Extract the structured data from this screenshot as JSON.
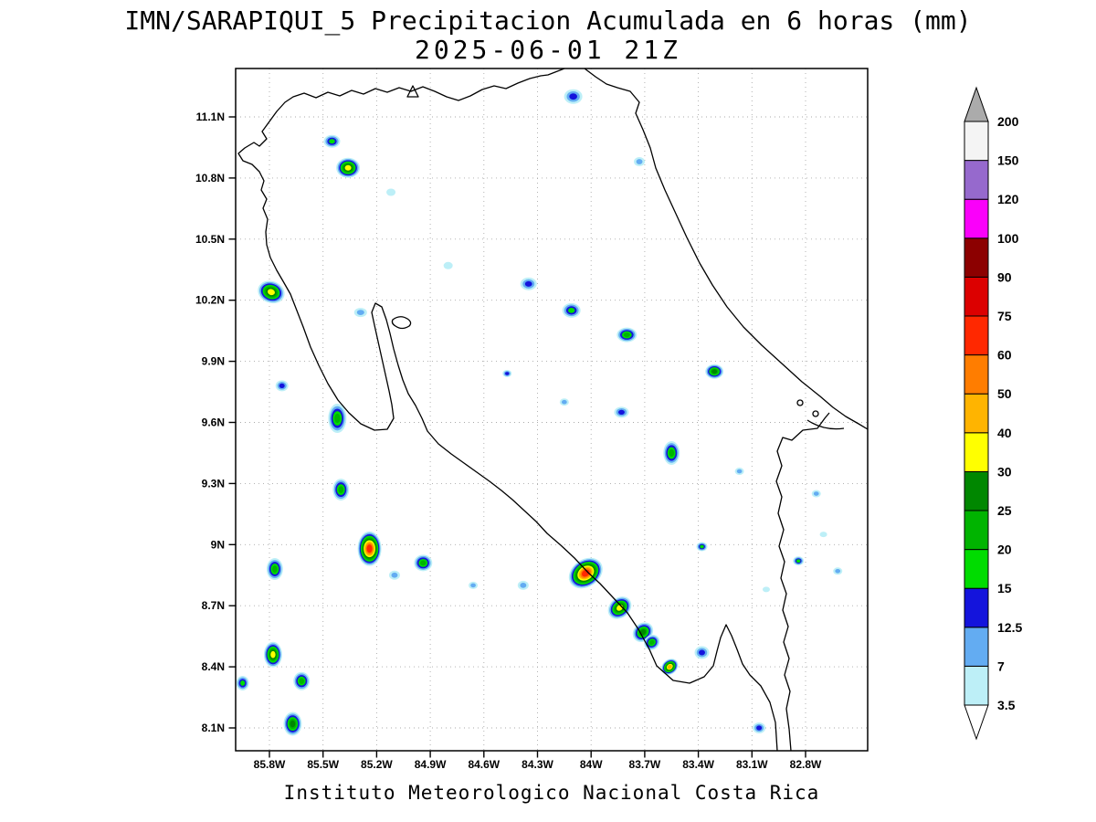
{
  "header": {
    "title": "IMN/SARAPIQUI_5 Precipitacion Acumulada en 6 horas (mm)",
    "subtitle": "2025-06-01 21Z"
  },
  "footer": {
    "caption": "Instituto Meteorologico Nacional Costa Rica"
  },
  "chart_data": {
    "type": "heatmap",
    "title": "IMN/SARAPIQUI_5 Precipitacion Acumulada en 6 horas (mm)",
    "subtitle": "2025-06-01 21Z",
    "units": "mm",
    "region": "Costa Rica",
    "x_axis": {
      "ticks": [
        {
          "value": 85.8,
          "label": "85.8W"
        },
        {
          "value": 85.5,
          "label": "85.5W"
        },
        {
          "value": 85.2,
          "label": "85.2W"
        },
        {
          "value": 84.9,
          "label": "84.9W"
        },
        {
          "value": 84.6,
          "label": "84.6W"
        },
        {
          "value": 84.3,
          "label": "84.3W"
        },
        {
          "value": 84.0,
          "label": "84W"
        },
        {
          "value": 83.7,
          "label": "83.7W"
        },
        {
          "value": 83.4,
          "label": "83.4W"
        },
        {
          "value": 83.1,
          "label": "83.1W"
        },
        {
          "value": 82.8,
          "label": "82.8W"
        }
      ]
    },
    "y_axis": {
      "ticks": [
        {
          "value": 11.1,
          "label": "11.1N"
        },
        {
          "value": 10.8,
          "label": "10.8N"
        },
        {
          "value": 10.5,
          "label": "10.5N"
        },
        {
          "value": 10.2,
          "label": "10.2N"
        },
        {
          "value": 9.9,
          "label": "9.9N"
        },
        {
          "value": 9.6,
          "label": "9.6N"
        },
        {
          "value": 9.3,
          "label": "9.3N"
        },
        {
          "value": 9.0,
          "label": "9N"
        },
        {
          "value": 8.7,
          "label": "8.7N"
        },
        {
          "value": 8.4,
          "label": "8.4N"
        },
        {
          "value": 8.1,
          "label": "8.1N"
        }
      ]
    },
    "colorbar": {
      "levels": [
        3.5,
        7,
        12.5,
        15,
        20,
        25,
        30,
        40,
        50,
        60,
        75,
        90,
        100,
        120,
        150,
        200
      ],
      "labels": [
        "3.5",
        "7",
        "12.5",
        "15",
        "20",
        "25",
        "30",
        "40",
        "50",
        "60",
        "75",
        "90",
        "100",
        "120",
        "150",
        "200"
      ],
      "colors": {
        "3.5": "#BDEFF7",
        "7": "#63ACF2",
        "12.5": "#1414DC",
        "15": "#00DC00",
        "20": "#00B400",
        "25": "#008700",
        "30": "#FFFF00",
        "40": "#FFB400",
        "50": "#FF7D00",
        "60": "#FF2800",
        "75": "#DC0000",
        "90": "#8C0000",
        "100": "#FA00FA",
        "120": "#9669CD",
        "150": "#F4F4F4"
      },
      "above_color": "#ABABAB",
      "below_color": "#FFFFFF"
    },
    "cells": [
      {
        "lon": 84.1,
        "lat": 11.2,
        "rx": 10,
        "ry": 8,
        "rot": 0,
        "max": 12.5
      },
      {
        "lon": 85.45,
        "lat": 10.98,
        "rx": 9,
        "ry": 7,
        "rot": 0,
        "max": 15
      },
      {
        "lon": 85.36,
        "lat": 10.85,
        "rx": 13,
        "ry": 11,
        "rot": 0,
        "max": 30
      },
      {
        "lon": 85.12,
        "lat": 10.73,
        "rx": 5,
        "ry": 4,
        "rot": 0,
        "max": 3.5
      },
      {
        "lon": 83.73,
        "lat": 10.88,
        "rx": 6,
        "ry": 5,
        "rot": 0,
        "max": 7
      },
      {
        "lon": 84.8,
        "lat": 10.37,
        "rx": 5,
        "ry": 4,
        "rot": 0,
        "max": 3.5
      },
      {
        "lon": 85.79,
        "lat": 10.24,
        "rx": 15,
        "ry": 12,
        "rot": 20,
        "max": 30
      },
      {
        "lon": 84.35,
        "lat": 10.28,
        "rx": 9,
        "ry": 7,
        "rot": 0,
        "max": 12.5
      },
      {
        "lon": 84.11,
        "lat": 10.15,
        "rx": 10,
        "ry": 8,
        "rot": 0,
        "max": 15
      },
      {
        "lon": 83.8,
        "lat": 10.03,
        "rx": 11,
        "ry": 8,
        "rot": 0,
        "max": 20
      },
      {
        "lon": 85.29,
        "lat": 10.14,
        "rx": 7,
        "ry": 5,
        "rot": 0,
        "max": 7
      },
      {
        "lon": 84.47,
        "lat": 9.84,
        "rx": 5,
        "ry": 4,
        "rot": 0,
        "max": 12.5
      },
      {
        "lon": 83.31,
        "lat": 9.85,
        "rx": 10,
        "ry": 8,
        "rot": 0,
        "max": 25
      },
      {
        "lon": 85.73,
        "lat": 9.78,
        "rx": 7,
        "ry": 6,
        "rot": 0,
        "max": 12.5
      },
      {
        "lon": 85.42,
        "lat": 9.62,
        "rx": 10,
        "ry": 16,
        "rot": 0,
        "max": 20
      },
      {
        "lon": 84.15,
        "lat": 9.7,
        "rx": 5,
        "ry": 4,
        "rot": 0,
        "max": 7
      },
      {
        "lon": 83.83,
        "lat": 9.65,
        "rx": 8,
        "ry": 6,
        "rot": 0,
        "max": 12.5
      },
      {
        "lon": 83.55,
        "lat": 9.45,
        "rx": 9,
        "ry": 13,
        "rot": 0,
        "max": 20
      },
      {
        "lon": 83.17,
        "lat": 9.36,
        "rx": 5,
        "ry": 4,
        "rot": 0,
        "max": 7
      },
      {
        "lon": 85.4,
        "lat": 9.27,
        "rx": 9,
        "ry": 12,
        "rot": 0,
        "max": 20
      },
      {
        "lon": 82.74,
        "lat": 9.25,
        "rx": 5,
        "ry": 4,
        "rot": 0,
        "max": 7
      },
      {
        "lon": 85.24,
        "lat": 8.98,
        "rx": 13,
        "ry": 19,
        "rot": 0,
        "max": 60
      },
      {
        "lon": 85.77,
        "lat": 8.88,
        "rx": 9,
        "ry": 12,
        "rot": 0,
        "max": 20
      },
      {
        "lon": 84.94,
        "lat": 8.91,
        "rx": 10,
        "ry": 9,
        "rot": 0,
        "max": 20
      },
      {
        "lon": 85.1,
        "lat": 8.85,
        "rx": 6,
        "ry": 5,
        "rot": 0,
        "max": 7
      },
      {
        "lon": 84.66,
        "lat": 8.8,
        "rx": 5,
        "ry": 4,
        "rot": 0,
        "max": 7
      },
      {
        "lon": 84.38,
        "lat": 8.8,
        "rx": 6,
        "ry": 5,
        "rot": 0,
        "max": 7
      },
      {
        "lon": 84.03,
        "lat": 8.86,
        "rx": 20,
        "ry": 15,
        "rot": -35,
        "max": 60
      },
      {
        "lon": 83.84,
        "lat": 8.69,
        "rx": 14,
        "ry": 11,
        "rot": -40,
        "max": 30
      },
      {
        "lon": 83.71,
        "lat": 8.57,
        "rx": 12,
        "ry": 10,
        "rot": -40,
        "max": 25
      },
      {
        "lon": 83.66,
        "lat": 8.52,
        "rx": 9,
        "ry": 8,
        "rot": -40,
        "max": 20
      },
      {
        "lon": 83.56,
        "lat": 8.4,
        "rx": 10,
        "ry": 8,
        "rot": -40,
        "max": 40
      },
      {
        "lon": 83.38,
        "lat": 8.47,
        "rx": 8,
        "ry": 7,
        "rot": 0,
        "max": 12.5
      },
      {
        "lon": 85.78,
        "lat": 8.46,
        "rx": 10,
        "ry": 14,
        "rot": 0,
        "max": 30
      },
      {
        "lon": 85.62,
        "lat": 8.33,
        "rx": 9,
        "ry": 10,
        "rot": 0,
        "max": 20
      },
      {
        "lon": 85.95,
        "lat": 8.32,
        "rx": 7,
        "ry": 8,
        "rot": 0,
        "max": 15
      },
      {
        "lon": 85.67,
        "lat": 8.12,
        "rx": 10,
        "ry": 13,
        "rot": 0,
        "max": 25
      },
      {
        "lon": 83.06,
        "lat": 8.1,
        "rx": 7,
        "ry": 6,
        "rot": 0,
        "max": 12.5
      },
      {
        "lon": 83.38,
        "lat": 8.99,
        "rx": 6,
        "ry": 5,
        "rot": 0,
        "max": 15
      },
      {
        "lon": 82.84,
        "lat": 8.92,
        "rx": 6,
        "ry": 5,
        "rot": 0,
        "max": 15
      },
      {
        "lon": 82.62,
        "lat": 8.87,
        "rx": 5,
        "ry": 4,
        "rot": 0,
        "max": 7
      },
      {
        "lon": 82.7,
        "lat": 9.05,
        "rx": 4,
        "ry": 3,
        "rot": 0,
        "max": 3.5
      },
      {
        "lon": 83.02,
        "lat": 8.78,
        "rx": 4,
        "ry": 3,
        "rot": 0,
        "max": 3.5
      }
    ]
  }
}
